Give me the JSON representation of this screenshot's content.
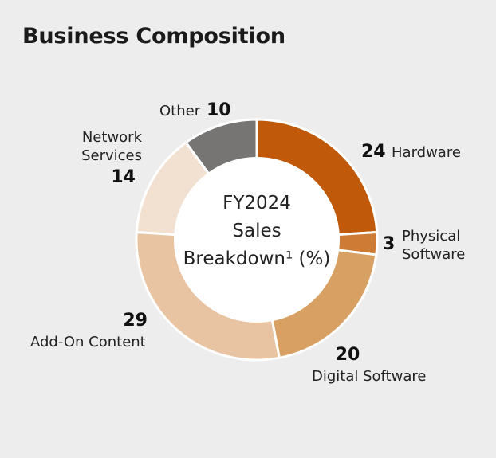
{
  "title": "Business Composition",
  "chart_data": {
    "type": "pie",
    "title": "FY2024 Sales Breakdown¹ (%)",
    "center_lines": [
      "FY2024",
      "Sales",
      "Breakdown",
      "¹ (%)"
    ],
    "slices": [
      {
        "label": "Hardware",
        "value": 24,
        "color": "#c05a0a"
      },
      {
        "label": "Physical Software",
        "label_lines": [
          "Physical",
          "Software"
        ],
        "value": 3,
        "color": "#cd7b35"
      },
      {
        "label": "Digital Software",
        "value": 20,
        "color": "#d9a064"
      },
      {
        "label": "Add-On Content",
        "value": 29,
        "color": "#e9c4a2"
      },
      {
        "label": "Network Services",
        "label_lines": [
          "Network",
          "Services"
        ],
        "value": 14,
        "color": "#f2e0d1"
      },
      {
        "label": "Other",
        "value": 10,
        "color": "#767574"
      }
    ]
  }
}
